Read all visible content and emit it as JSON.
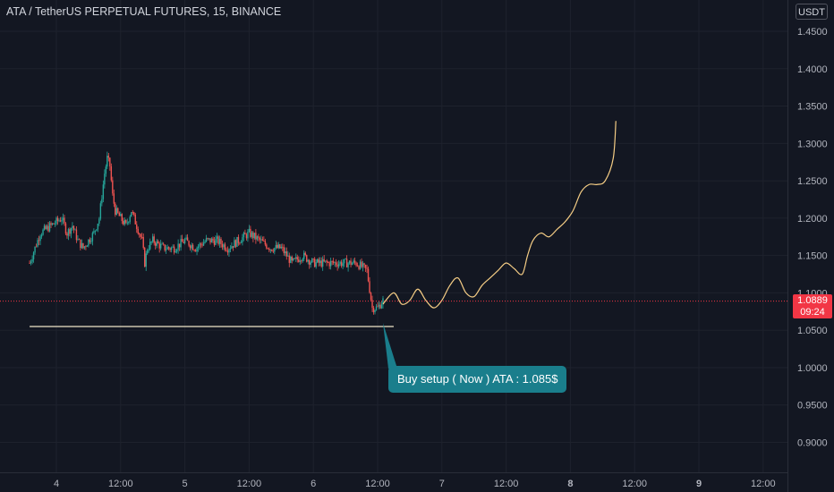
{
  "header": {
    "title": "ATA / TetherUS PERPETUAL FUTURES, 15, BINANCE"
  },
  "price_scale": {
    "currency": "USDT"
  },
  "last_price": {
    "value": "1.0889",
    "countdown": "09:24"
  },
  "callout": {
    "text": "Buy setup ( Now ) ATA : 1.085$"
  },
  "colors": {
    "background": "#131722",
    "up": "#26a69a",
    "down": "#ef5350",
    "projection": "#f5cd85",
    "support": "#f0e6c8",
    "callout": "#1a7e8c",
    "price_line": "#f23645"
  },
  "chart_data": {
    "type": "line",
    "title": "ATA / TetherUS PERPETUAL FUTURES, 15, BINANCE",
    "ylim": [
      0.86,
      1.48
    ],
    "y_ticks": [
      "1.4500",
      "1.4000",
      "1.3500",
      "1.3000",
      "1.2500",
      "1.2000",
      "1.1500",
      "1.1000",
      "1.0500",
      "1.0000",
      "0.9500",
      "0.9000"
    ],
    "x_ticks": [
      {
        "label": "4",
        "bold": false
      },
      {
        "label": "12:00",
        "bold": false
      },
      {
        "label": "5",
        "bold": false
      },
      {
        "label": "12:00",
        "bold": false
      },
      {
        "label": "6",
        "bold": false
      },
      {
        "label": "12:00",
        "bold": false
      },
      {
        "label": "7",
        "bold": false
      },
      {
        "label": "12:00",
        "bold": false
      },
      {
        "label": "8",
        "bold": true
      },
      {
        "label": "12:00",
        "bold": false
      },
      {
        "label": "9",
        "bold": true
      },
      {
        "label": "12:00",
        "bold": false
      }
    ],
    "x_tick_times": [
      0,
      12,
      24,
      36,
      48,
      60,
      72,
      84,
      96,
      108,
      120,
      132
    ],
    "x_unit_note": "hours since day 4 00:00",
    "price_history": [
      [
        -5,
        1.14
      ],
      [
        -3,
        1.18
      ],
      [
        -1,
        1.19
      ],
      [
        1,
        1.2
      ],
      [
        2,
        1.18
      ],
      [
        3,
        1.19
      ],
      [
        4,
        1.17
      ],
      [
        5,
        1.16
      ],
      [
        6,
        1.17
      ],
      [
        7,
        1.18
      ],
      [
        8,
        1.2
      ],
      [
        9,
        1.26
      ],
      [
        9.5,
        1.28
      ],
      [
        10,
        1.27
      ],
      [
        10.5,
        1.23
      ],
      [
        11,
        1.21
      ],
      [
        12,
        1.2
      ],
      [
        13,
        1.19
      ],
      [
        14,
        1.21
      ],
      [
        15,
        1.19
      ],
      [
        16,
        1.17
      ],
      [
        16.5,
        1.14
      ],
      [
        17,
        1.16
      ],
      [
        18,
        1.17
      ],
      [
        20,
        1.16
      ],
      [
        22,
        1.16
      ],
      [
        24,
        1.17
      ],
      [
        26,
        1.16
      ],
      [
        28,
        1.17
      ],
      [
        30,
        1.17
      ],
      [
        32,
        1.16
      ],
      [
        34,
        1.17
      ],
      [
        36,
        1.18
      ],
      [
        38,
        1.17
      ],
      [
        40,
        1.16
      ],
      [
        42,
        1.16
      ],
      [
        44,
        1.14
      ],
      [
        46,
        1.15
      ],
      [
        48,
        1.14
      ],
      [
        50,
        1.14
      ],
      [
        52,
        1.14
      ],
      [
        54,
        1.14
      ],
      [
        56,
        1.14
      ],
      [
        58,
        1.13
      ],
      [
        59,
        1.08
      ],
      [
        60,
        1.08
      ],
      [
        61,
        1.09
      ]
    ],
    "projection": [
      [
        61,
        1.085
      ],
      [
        63,
        1.1
      ],
      [
        64.5,
        1.085
      ],
      [
        66,
        1.09
      ],
      [
        67.5,
        1.105
      ],
      [
        69,
        1.09
      ],
      [
        70.5,
        1.08
      ],
      [
        72,
        1.09
      ],
      [
        73.5,
        1.11
      ],
      [
        75,
        1.12
      ],
      [
        76.5,
        1.1
      ],
      [
        78,
        1.095
      ],
      [
        79.5,
        1.11
      ],
      [
        81,
        1.12
      ],
      [
        82.5,
        1.13
      ],
      [
        84,
        1.14
      ],
      [
        85.5,
        1.1325
      ],
      [
        87,
        1.125
      ],
      [
        88,
        1.15
      ],
      [
        89,
        1.17
      ],
      [
        90.5,
        1.18
      ],
      [
        92,
        1.175
      ],
      [
        93.5,
        1.185
      ],
      [
        95,
        1.195
      ],
      [
        96.5,
        1.21
      ],
      [
        98,
        1.235
      ],
      [
        99.5,
        1.245
      ],
      [
        101,
        1.245
      ],
      [
        102.5,
        1.25
      ],
      [
        104,
        1.28
      ],
      [
        104.5,
        1.33
      ]
    ],
    "support_level": 1.055,
    "support_range": [
      -5,
      63
    ],
    "last_price": 1.0889
  }
}
